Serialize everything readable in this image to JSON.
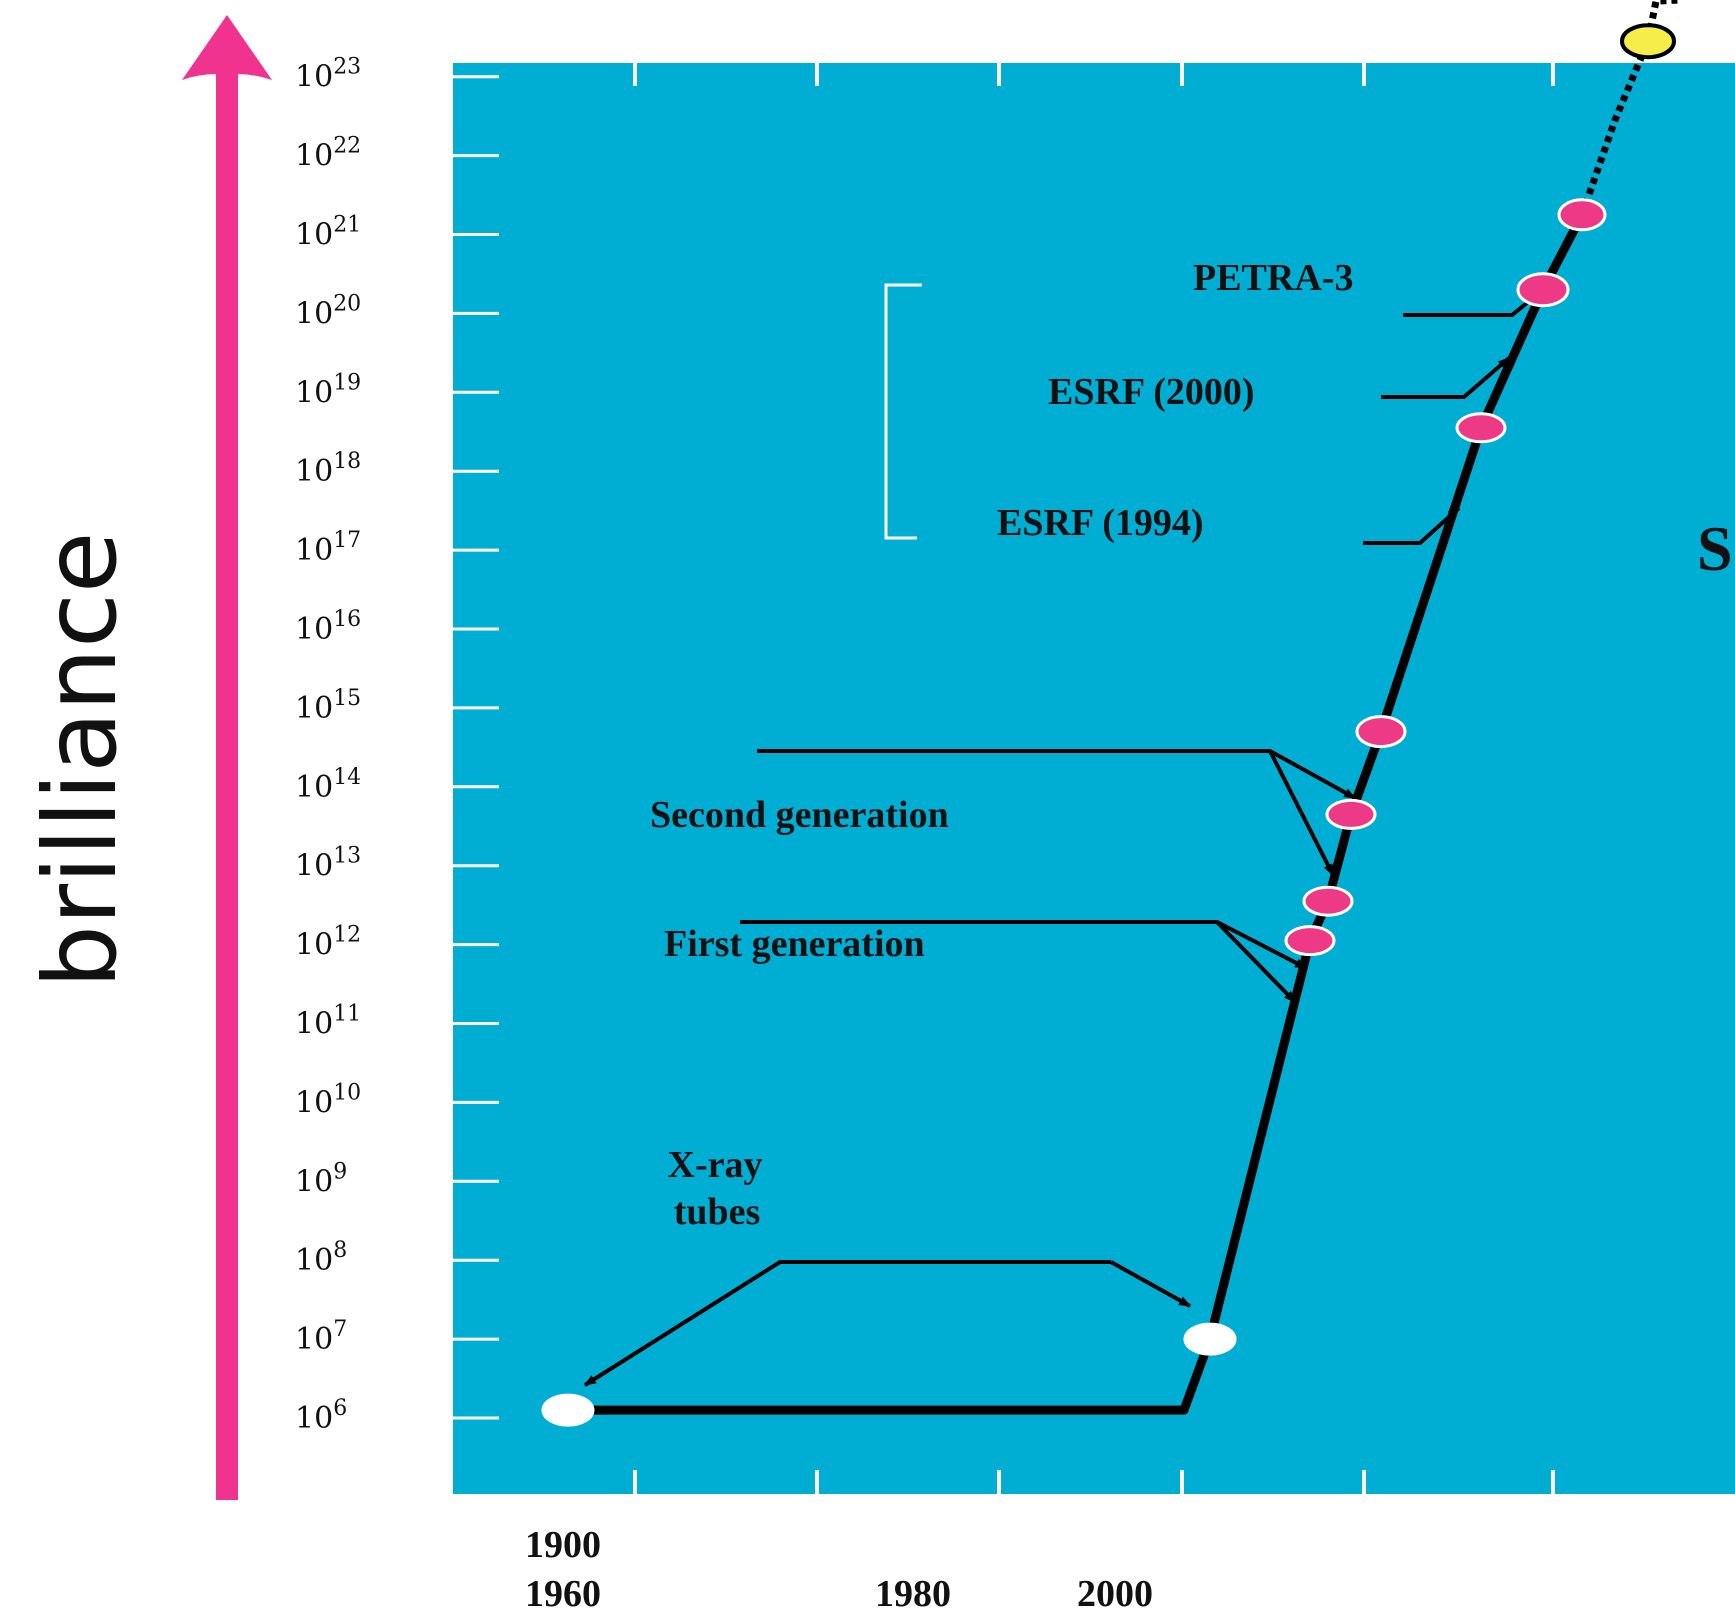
{
  "chart_data": {
    "type": "line",
    "title": "",
    "ylabel": "brilliance",
    "xlabel": "",
    "y_scale": "log",
    "ylim_exponent": [
      5,
      25
    ],
    "y_tick_exponents": [
      6,
      7,
      8,
      9,
      10,
      11,
      12,
      13,
      14,
      15,
      16,
      17,
      18,
      19,
      20,
      21,
      22,
      23
    ],
    "y_tick_base": "10",
    "x_tick_labels": [
      "1900",
      "1960",
      "1980",
      "2000"
    ],
    "series": [
      {
        "points": [
          {
            "exp": 6.1,
            "color": "#ffffff"
          },
          {
            "exp": 7.0,
            "color": "#ffffff"
          },
          {
            "exp": 12.05,
            "color": "#ee3a86"
          },
          {
            "exp": 12.55,
            "color": "#ee3a86"
          },
          {
            "exp": 13.65,
            "color": "#ee3a86"
          },
          {
            "exp": 14.7,
            "color": "#ee3a86"
          },
          {
            "exp": 18.55,
            "color": "#ee3a86"
          },
          {
            "exp": 20.3,
            "color": "#ee3a86"
          },
          {
            "exp": 21.25,
            "color": "#ee3a86"
          },
          {
            "exp": 23.45,
            "color": "#f6ec4a"
          }
        ]
      }
    ],
    "annotations": [
      {
        "text": "PETRA-3"
      },
      {
        "text": "ESRF (2000)"
      },
      {
        "text": "ESRF (1994)"
      },
      {
        "text": "Second generation"
      },
      {
        "text": "First generation"
      },
      {
        "text": "X-ray"
      },
      {
        "text": "tubes"
      }
    ],
    "partial_label": "S",
    "grid": false,
    "legend": "none",
    "colors": {
      "plot_background": "#00aed4",
      "axis_arrow": "#f0338f",
      "marker_pink": "#ee3a86",
      "marker_white": "#ffffff",
      "marker_yellow": "#f6ec4a",
      "line": "#000000",
      "ticks": "#ffffff"
    }
  }
}
